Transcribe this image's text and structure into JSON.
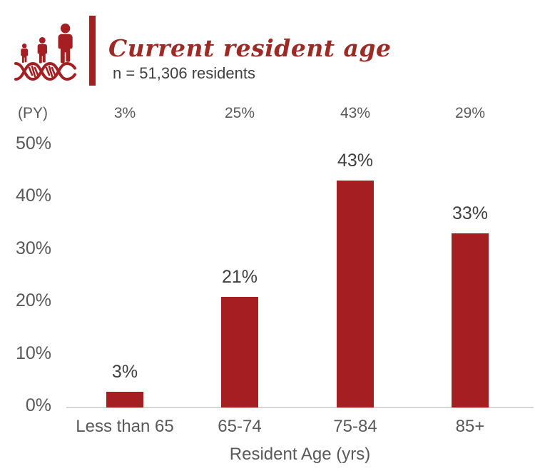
{
  "header": {
    "title": "Current resident age",
    "subtitle": "n = 51,306 residents",
    "icon": "people-growth-dna-icon"
  },
  "chart_data": {
    "type": "bar",
    "title": "Current resident age",
    "subtitle": "n = 51,306 residents",
    "categories": [
      "Less than 65",
      "65-74",
      "75-84",
      "85+"
    ],
    "values": [
      3,
      21,
      43,
      33
    ],
    "value_labels": [
      "3%",
      "21%",
      "43%",
      "33%"
    ],
    "py_row": {
      "label": "(PY)",
      "values": [
        "3%",
        "25%",
        "43%",
        "29%"
      ]
    },
    "xlabel": "Resident Age (yrs)",
    "ylabel": "",
    "ylim": [
      0,
      50
    ],
    "yticks": [
      {
        "label": "0%",
        "value": 0
      },
      {
        "label": "10%",
        "value": 10
      },
      {
        "label": "20%",
        "value": 20
      },
      {
        "label": "30%",
        "value": 30
      },
      {
        "label": "40%",
        "value": 40
      },
      {
        "label": "50%",
        "value": 50
      }
    ],
    "grid": false,
    "legend": "none",
    "bar_color": "#A51F22"
  },
  "colors": {
    "accent_red": "#A51F22",
    "title_red": "#9E2A25",
    "value_text": "#3F3F3F",
    "axis_text": "#595959",
    "subtitle_text": "#404040",
    "axis_line": "#D6D6D6",
    "background": "#FFFFFF"
  }
}
